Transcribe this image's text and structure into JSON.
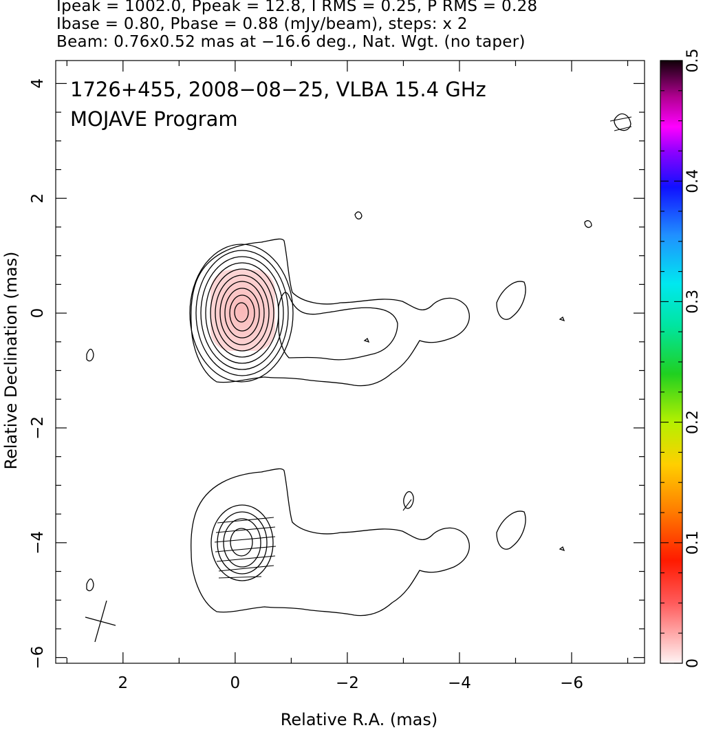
{
  "header": {
    "line1": "Ipeak = 1002.0, Ppeak = 12.8, I RMS = 0.25, P RMS = 0.28",
    "line2": "Ibase = 0.80, Pbase = 0.88 (mJy/beam), steps: x 2",
    "line3": "Beam: 0.76x0.52 mas at −16.6 deg., Nat. Wgt. (no taper)"
  },
  "annotation": {
    "line1": "1726+455, 2008−08−25, VLBA 15.4 GHz",
    "line2": "MOJAVE Program"
  },
  "chart_data": {
    "type": "contour",
    "xlabel": "Relative R.A. (mas)",
    "ylabel": "Relative Declination (mas)",
    "xlim": [
      3.2,
      -7.3
    ],
    "ylim": [
      -6.1,
      4.4
    ],
    "x_ticks": [
      2,
      0,
      -2,
      -4,
      -6
    ],
    "x_tick_labels": [
      "2",
      "0",
      "−2",
      "−4",
      "−6"
    ],
    "y_ticks": [
      4,
      2,
      0,
      -2,
      -4,
      -6
    ],
    "y_tick_labels": [
      "4",
      "2",
      "0",
      "−2",
      "−4",
      "−6"
    ],
    "colorbar": {
      "range": [
        0,
        0.5
      ],
      "ticks": [
        0,
        0.1,
        0.2,
        0.3,
        0.4,
        0.5
      ],
      "tick_labels": [
        "0",
        "0.1",
        "0.2",
        "0.3",
        "0.4",
        "0.5"
      ]
    },
    "stokes_i_peak_mjy_per_beam": 1002.0,
    "polarized_peak_mjy_per_beam": 12.8,
    "i_rms": 0.25,
    "p_rms": 0.28,
    "i_base": 0.8,
    "p_base": 0.88,
    "contour_step_factor": 2,
    "beam": {
      "major_mas": 0.76,
      "minor_mas": 0.52,
      "pa_deg": -16.6
    },
    "total_intensity_panel": {
      "core_center": [
        0,
        0
      ],
      "nested_core_contours": 10,
      "fractional_pol_patch": {
        "center": [
          -0.05,
          0.05
        ],
        "width": 1.0,
        "height": 1.35
      }
    },
    "polarized_panel": {
      "offset_dec": -4.0,
      "core_center": [
        0,
        -4.0
      ],
      "nested_core_contours": 4
    },
    "isolated_islands": [
      [
        2.6,
        -0.72
      ],
      [
        -2.05,
        1.68
      ],
      [
        -6.05,
        1.53
      ],
      [
        -6.65,
        3.32
      ],
      [
        -4.75,
        -0.25
      ],
      [
        -2.2,
        -0.5
      ],
      [
        -5.6,
        -0.12
      ]
    ]
  }
}
